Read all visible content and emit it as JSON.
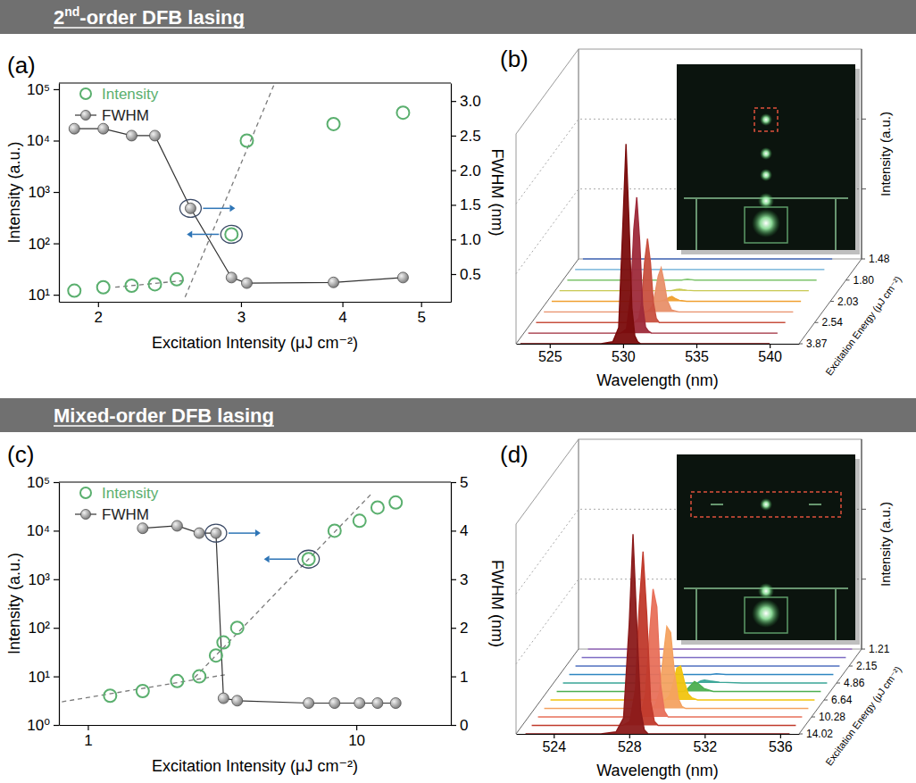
{
  "section_titles": [
    "2nd-order DFB lasing",
    "Mixed-order DFB lasing"
  ],
  "chart_data": [
    {
      "type": "scatter",
      "panel": "(a)",
      "x_label": "Excitation Intensity (μJ cm⁻²)",
      "y_label": "Intensity (a.u.)",
      "y2_label": "FWHM (nm)",
      "log": true,
      "xlim": [
        1.79,
        5.44
      ],
      "xticks": [
        2,
        3,
        4,
        5
      ],
      "ylim": [
        7.3,
        132000
      ],
      "yticks": [
        {
          "value": 10,
          "label": "10¹"
        },
        {
          "value": 100,
          "label": "10²"
        },
        {
          "value": 1000,
          "label": "10³"
        },
        {
          "value": 10000,
          "label": "10⁴"
        },
        {
          "value": 100000,
          "label": "10⁵"
        }
      ],
      "y2lim": [
        0.1,
        3.26
      ],
      "y2ticks": [
        0.5,
        {
          "value": 1,
          "label": "1.0"
        },
        1.5,
        {
          "value": 2,
          "label": "2.0"
        },
        2.5,
        {
          "value": 3,
          "label": "3.0"
        }
      ],
      "legend": "upper left",
      "series": [
        {
          "name": "Intensity",
          "color": "#5aaf6e",
          "marker": "open-circle",
          "line_style": "none",
          "x": [
            1.87,
            2.03,
            2.2,
            2.35,
            2.5,
            2.92,
            3.05,
            3.9,
            4.75
          ],
          "values": [
            12,
            14,
            15,
            16,
            20,
            150,
            10000,
            21000,
            35000
          ],
          "highlight": 5
        },
        {
          "name": "FWHM",
          "color": "#808080",
          "marker": "ball",
          "line_style": "solid",
          "axis": "y2",
          "x": [
            1.87,
            2.03,
            2.2,
            2.35,
            2.6,
            2.92,
            3.05,
            3.9,
            4.75
          ],
          "values": [
            2.6,
            2.6,
            2.5,
            2.5,
            1.45,
            0.45,
            0.37,
            0.38,
            0.45
          ],
          "highlight": 4
        }
      ],
      "fit_lines": [
        {
          "x": [
            2.1,
            2.56
          ],
          "values": [
            14,
            19
          ],
          "line_style": "dashed"
        },
        {
          "x": [
            2.56,
            3.3
          ],
          "values": [
            9,
            130000
          ],
          "line_style": "dashed"
        }
      ]
    },
    {
      "type": "waterfall",
      "panel": "(b)",
      "x_label": "Wavelength (nm)",
      "y_label": "Intensity (a.u.)",
      "z_label": "Excitation Energy (μJ cm⁻²)",
      "xlim": [
        522.7,
        542
      ],
      "xticks": [
        525,
        530,
        535,
        540
      ],
      "ylim": [
        0,
        1.05
      ],
      "yticks": [
        0.35,
        0.7
      ],
      "grid": true,
      "tick_labels": "x",
      "z_categories": [
        "1.48",
        null,
        "1.80",
        null,
        "2.03",
        null,
        "2.54",
        null,
        "3.87"
      ],
      "x": [
        523,
        527,
        528.5,
        529.3,
        529.7,
        530,
        530.2,
        530.4,
        530.6,
        530.8,
        531,
        531.2,
        531.4,
        531.7,
        532.2,
        533.5,
        536,
        540
      ],
      "series": [
        {
          "color": "#4a6fbf",
          "values": [
            0,
            0,
            0,
            0,
            0,
            0,
            0,
            0,
            0,
            0,
            0,
            0,
            0,
            0,
            0,
            0,
            0,
            0
          ]
        },
        {
          "color": "#5fa8d3",
          "values": [
            0,
            0,
            0,
            0,
            0,
            0,
            0,
            0,
            0,
            0,
            0,
            0,
            0,
            0,
            0,
            0,
            0,
            0
          ]
        },
        {
          "color": "#7cc36a",
          "values": [
            0,
            0,
            0,
            0,
            0,
            0,
            0,
            0,
            0,
            0,
            0.003,
            0.005,
            0.003,
            0,
            0,
            0,
            0,
            0
          ]
        },
        {
          "color": "#c8c850",
          "values": [
            0,
            0,
            0,
            0,
            0,
            0,
            0,
            0,
            0,
            0.003,
            0.006,
            0.008,
            0.005,
            0.002,
            0,
            0,
            0,
            0
          ]
        },
        {
          "color": "#f0a030",
          "values": [
            0,
            0,
            0,
            0,
            0,
            0,
            0,
            0,
            0.005,
            0.01,
            0.02,
            0.025,
            0.015,
            0.005,
            0,
            0,
            0,
            0
          ]
        },
        {
          "color": "#e8906a",
          "values": [
            0,
            0,
            0,
            0,
            0,
            0,
            0.01,
            0.03,
            0.1,
            0.18,
            0.22,
            0.15,
            0.06,
            0.01,
            0,
            0,
            0,
            0
          ]
        },
        {
          "color": "#c8503f",
          "values": [
            0,
            0,
            0,
            0,
            0,
            0.02,
            0.1,
            0.3,
            0.42,
            0.3,
            0.1,
            0.02,
            0,
            0,
            0,
            0,
            0,
            0
          ]
        },
        {
          "color": "#9e2a3a",
          "values": [
            0,
            0,
            0,
            0,
            0.02,
            0.2,
            0.52,
            0.68,
            0.46,
            0.14,
            0.03,
            0.01,
            0,
            0,
            0,
            0,
            0,
            0
          ]
        },
        {
          "color": "#7a0c0c",
          "values": [
            0,
            0,
            0,
            0.01,
            0.08,
            0.62,
            1.0,
            0.62,
            0.18,
            0.04,
            0.01,
            0,
            0,
            0,
            0,
            0,
            0,
            0
          ]
        }
      ]
    },
    {
      "type": "scatter",
      "panel": "(c)",
      "x_label": "Excitation Intensity (μJ cm⁻²)",
      "y_label": "Intensity (a.u.)",
      "y2_label": "FWHM (nm)",
      "log": true,
      "xlim": [
        0.78,
        22.5
      ],
      "xticks": [
        1,
        10
      ],
      "ylim": [
        1,
        100000
      ],
      "yticks": [
        {
          "value": 1,
          "label": "10⁰"
        },
        {
          "value": 10,
          "label": "10¹"
        },
        {
          "value": 100,
          "label": "10²"
        },
        {
          "value": 1000,
          "label": "10³"
        },
        {
          "value": 10000,
          "label": "10⁴"
        },
        {
          "value": 100000,
          "label": "10⁵"
        }
      ],
      "y2lim": [
        0,
        5
      ],
      "y2ticks": [
        0,
        1,
        2,
        3,
        4,
        5
      ],
      "legend": "upper left",
      "series": [
        {
          "name": "Intensity",
          "color": "#5aaf6e",
          "marker": "open-circle",
          "line_style": "none",
          "x": [
            1.21,
            1.6,
            2.15,
            2.6,
            3.0,
            3.2,
            3.6,
            6.64,
            8.3,
            10.28,
            12.0,
            14.02
          ],
          "values": [
            4,
            5,
            8,
            10,
            27,
            50,
            100,
            2600,
            10000,
            16000,
            30000,
            38000
          ],
          "highlight": 7
        },
        {
          "name": "FWHM",
          "color": "#808080",
          "marker": "ball",
          "line_style": "solid",
          "axis": "y2",
          "x": [
            1.6,
            2.15,
            2.6,
            3.0,
            3.2,
            3.6,
            6.64,
            8.3,
            10.28,
            12.0,
            14.02
          ],
          "values": [
            4.05,
            4.1,
            3.95,
            3.95,
            0.55,
            0.5,
            0.45,
            0.45,
            0.45,
            0.45,
            0.45
          ],
          "highlight": 3
        }
      ],
      "fit_lines": [
        {
          "x": [
            0.8,
            3.3
          ],
          "values": [
            3,
            11
          ],
          "line_style": "dashed"
        },
        {
          "x": [
            2.5,
            11.5
          ],
          "values": [
            9.5,
            61000
          ],
          "line_style": "dashed"
        }
      ]
    },
    {
      "type": "waterfall",
      "panel": "(d)",
      "x_label": "Wavelength (nm)",
      "y_label": "Intensity (a.u.)",
      "z_label": "Excitation Energy (μJ cm⁻²)",
      "xlim": [
        522,
        537
      ],
      "xticks": [
        524,
        528,
        532,
        536
      ],
      "ylim": [
        0,
        1.05
      ],
      "yticks": [
        0.35,
        0.7
      ],
      "grid": true,
      "tick_labels": "x",
      "z_categories": [
        "1.21",
        null,
        "2.15",
        null,
        "4.86",
        null,
        "6.64",
        null,
        "10.28",
        null,
        "14.02"
      ],
      "x": [
        522.5,
        525,
        526.5,
        527.3,
        527.7,
        528,
        528.2,
        528.4,
        528.6,
        528.8,
        529,
        529.2,
        529.4,
        529.6,
        529.8,
        530,
        530.3,
        530.8,
        532,
        536.5
      ],
      "series": [
        {
          "color": "#9a6cc0",
          "values": [
            0,
            0,
            0,
            0,
            0,
            0,
            0,
            0,
            0,
            0,
            0,
            0,
            0,
            0,
            0,
            0,
            0,
            0,
            0,
            0
          ]
        },
        {
          "color": "#7e6bc4",
          "values": [
            0,
            0,
            0,
            0,
            0,
            0,
            0,
            0,
            0,
            0,
            0,
            0,
            0,
            0,
            0,
            0,
            0,
            0,
            0,
            0
          ]
        },
        {
          "color": "#4f6fbf",
          "values": [
            0,
            0,
            0,
            0,
            0,
            0,
            0,
            0,
            0,
            0,
            0,
            0,
            0,
            0,
            0,
            0,
            0,
            0,
            0,
            0
          ]
        },
        {
          "color": "#2e86c1",
          "values": [
            0,
            0,
            0,
            0,
            0,
            0,
            0,
            0,
            0,
            0,
            0,
            0,
            0,
            0,
            0,
            0,
            0.004,
            0,
            0,
            0
          ]
        },
        {
          "color": "#3aa597",
          "values": [
            0,
            0,
            0,
            0,
            0,
            0,
            0,
            0,
            0,
            0,
            0,
            0,
            0,
            0,
            0.01,
            0.015,
            0.01,
            0.004,
            0,
            0
          ]
        },
        {
          "color": "#4caf50",
          "values": [
            0,
            0,
            0,
            0,
            0,
            0,
            0,
            0,
            0,
            0,
            0,
            0,
            0.01,
            0.03,
            0.05,
            0.04,
            0.015,
            0,
            0,
            0
          ]
        },
        {
          "color": "#f1c40f",
          "values": [
            0,
            0,
            0,
            0,
            0,
            0,
            0,
            0,
            0,
            0.02,
            0.08,
            0.16,
            0.17,
            0.09,
            0.03,
            0.01,
            0,
            0,
            0,
            0
          ]
        },
        {
          "color": "#f4a261",
          "values": [
            0,
            0,
            0,
            0,
            0,
            0,
            0,
            0.02,
            0.08,
            0.25,
            0.41,
            0.38,
            0.18,
            0.05,
            0.01,
            0,
            0,
            0,
            0,
            0
          ]
        },
        {
          "color": "#e8705a",
          "values": [
            0,
            0,
            0,
            0,
            0,
            0.03,
            0.12,
            0.4,
            0.64,
            0.55,
            0.16,
            0.03,
            0,
            0,
            0,
            0,
            0,
            0,
            0,
            0
          ]
        },
        {
          "color": "#c0392b",
          "values": [
            0,
            0,
            0,
            0,
            0.02,
            0.18,
            0.6,
            0.87,
            0.55,
            0.12,
            0.02,
            0,
            0,
            0,
            0,
            0,
            0,
            0,
            0,
            0
          ]
        },
        {
          "color": "#8b1a1a",
          "values": [
            0,
            0,
            0,
            0.01,
            0.08,
            0.55,
            1.0,
            0.55,
            0.12,
            0.02,
            0,
            0,
            0,
            0,
            0,
            0,
            0,
            0,
            0,
            0
          ]
        }
      ]
    }
  ]
}
